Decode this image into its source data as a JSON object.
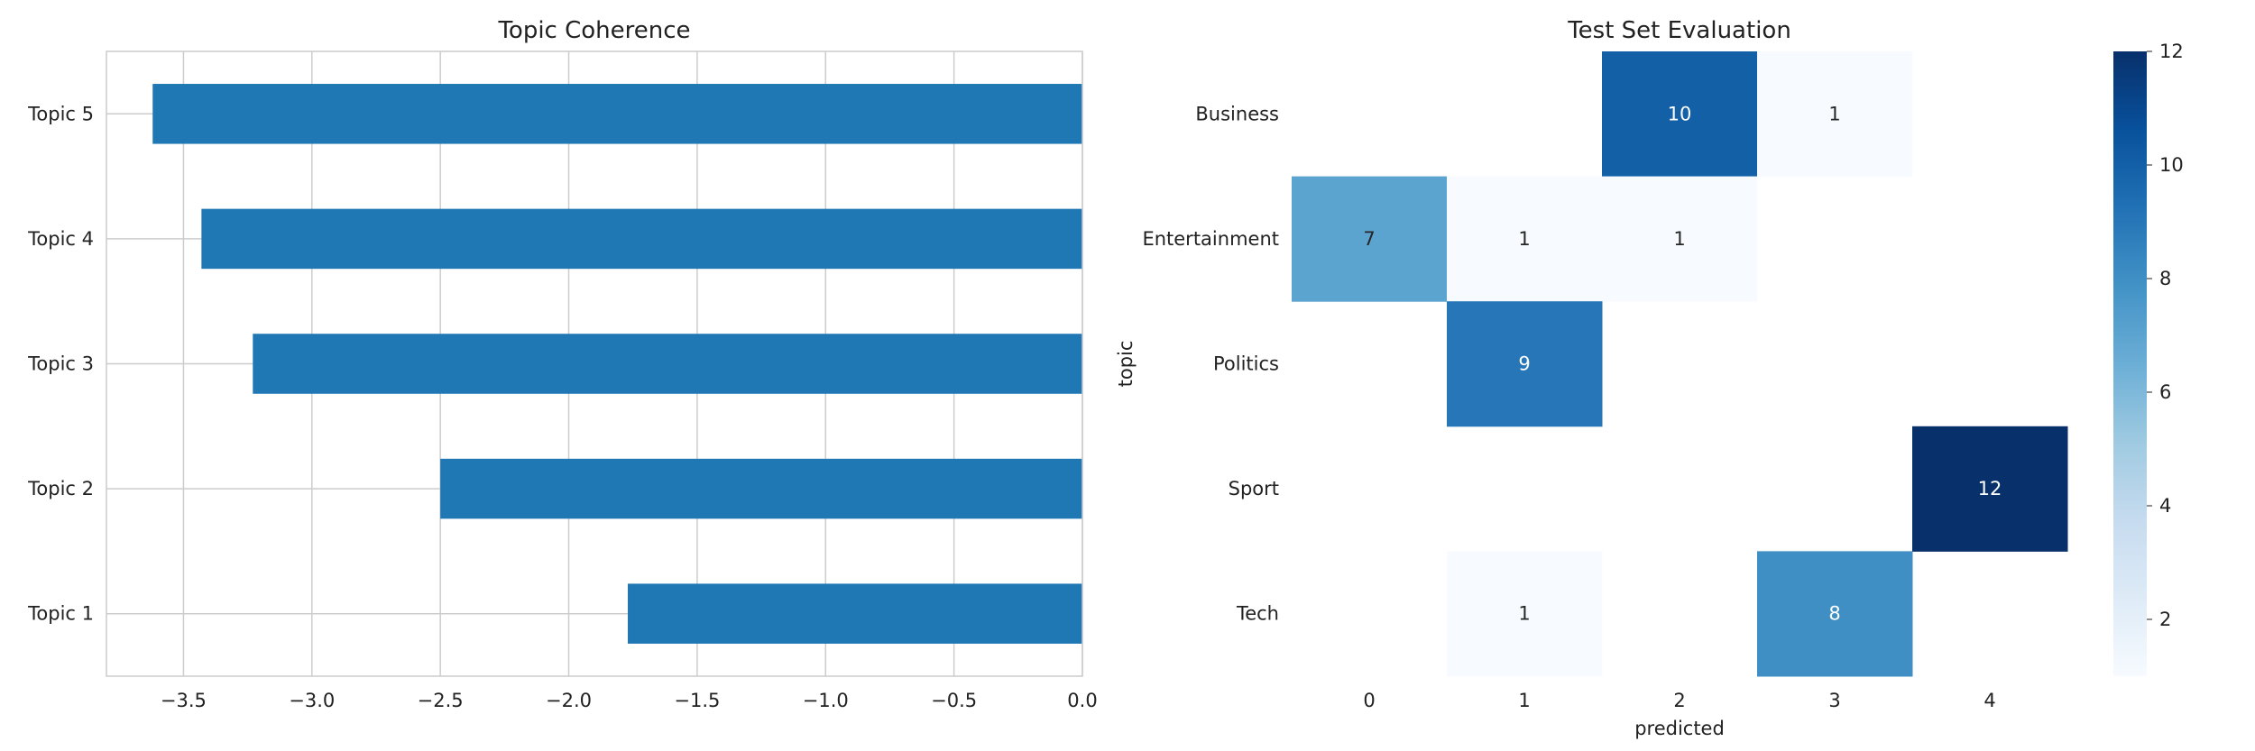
{
  "chart_data": [
    {
      "type": "bar",
      "orientation": "horizontal",
      "title": "Topic Coherence",
      "xlabel": "",
      "ylabel": "",
      "categories": [
        "Topic 1",
        "Topic 2",
        "Topic 3",
        "Topic 4",
        "Topic 5"
      ],
      "values": [
        -1.77,
        -2.5,
        -3.23,
        -3.43,
        -3.62
      ],
      "x_ticks": [
        "−3.5",
        "−3.0",
        "−2.5",
        "−2.0",
        "−1.5",
        "−1.0",
        "−0.5",
        "0.0"
      ],
      "x_tick_values": [
        -3.5,
        -3.0,
        -2.5,
        -2.0,
        -1.5,
        -1.0,
        -0.5,
        0.0
      ],
      "xlim": [
        -3.8,
        0.0
      ],
      "grid": true,
      "bar_color": "#1f77b4"
    },
    {
      "type": "heatmap",
      "title": "Test Set Evaluation",
      "xlabel": "predicted",
      "ylabel": "topic",
      "x_categories": [
        "0",
        "1",
        "2",
        "3",
        "4"
      ],
      "y_categories": [
        "Business",
        "Entertainment",
        "Politics",
        "Sport",
        "Tech"
      ],
      "values": [
        [
          null,
          null,
          10,
          1,
          null
        ],
        [
          7,
          1,
          1,
          null,
          null
        ],
        [
          null,
          9,
          null,
          null,
          null
        ],
        [
          null,
          null,
          null,
          null,
          12
        ],
        [
          null,
          1,
          null,
          8,
          null
        ]
      ],
      "colormap": "Blues",
      "color_range": [
        1,
        12
      ],
      "colorbar_ticks": [
        "2",
        "4",
        "6",
        "8",
        "10",
        "12"
      ],
      "colorbar_tick_values": [
        2,
        4,
        6,
        8,
        10,
        12
      ],
      "grid": false
    }
  ]
}
